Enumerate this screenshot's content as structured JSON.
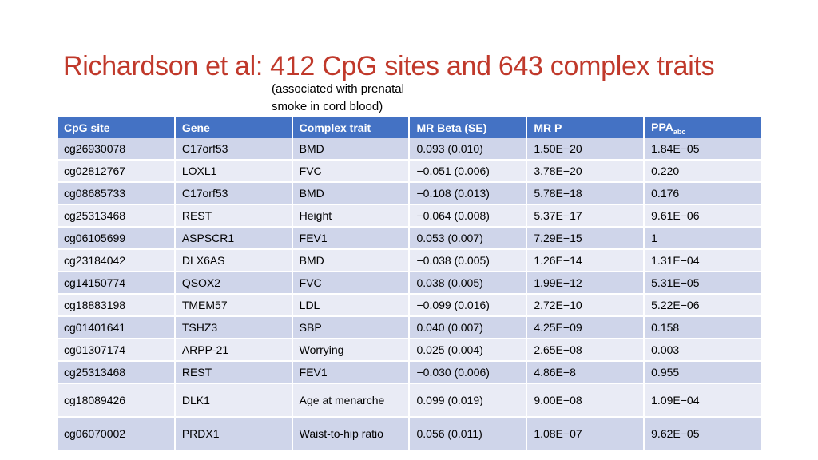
{
  "title": "Richardson et al: 412 CpG sites and 643 complex traits",
  "subtitle_line1": "(associated with prenatal",
  "subtitle_line2": "smoke in cord blood)",
  "colors": {
    "title": "#c0392b",
    "header_bg": "#4472c4",
    "row_odd": "#cfd5ea",
    "row_even": "#e9ebf5"
  },
  "table": {
    "headers": [
      "CpG site",
      "Gene",
      "Complex trait",
      "MR Beta (SE)",
      "MR P",
      "PPA"
    ],
    "ppa_subscript": "abc",
    "rows": [
      [
        "cg26930078",
        "C17orf53",
        "BMD",
        "0.093 (0.010)",
        "1.50E−20",
        "1.84E−05"
      ],
      [
        "cg02812767",
        "LOXL1",
        "FVC",
        "−0.051 (0.006)",
        "3.78E−20",
        "0.220"
      ],
      [
        "cg08685733",
        "C17orf53",
        "BMD",
        "−0.108 (0.013)",
        "5.78E−18",
        "0.176"
      ],
      [
        "cg25313468",
        "REST",
        "Height",
        "−0.064 (0.008)",
        "5.37E−17",
        "9.61E−06"
      ],
      [
        "cg06105699",
        "ASPSCR1",
        "FEV1",
        "0.053 (0.007)",
        "7.29E−15",
        "1"
      ],
      [
        "cg23184042",
        "DLX6AS",
        "BMD",
        "−0.038 (0.005)",
        "1.26E−14",
        "1.31E−04"
      ],
      [
        "cg14150774",
        "QSOX2",
        "FVC",
        "0.038 (0.005)",
        "1.99E−12",
        "5.31E−05"
      ],
      [
        "cg18883198",
        "TMEM57",
        "LDL",
        "−0.099 (0.016)",
        "2.72E−10",
        "5.22E−06"
      ],
      [
        "cg01401641",
        "TSHZ3",
        "SBP",
        "0.040 (0.007)",
        "4.25E−09",
        "0.158"
      ],
      [
        "cg01307174",
        "ARPP-21",
        "Worrying",
        "0.025 (0.004)",
        "2.65E−08",
        "0.003"
      ],
      [
        "cg25313468",
        "REST",
        "FEV1",
        "−0.030 (0.006)",
        "4.86E−8",
        "0.955"
      ],
      [
        "cg18089426",
        "DLK1",
        "Age at menarche",
        "0.099 (0.019)",
        "9.00E−08",
        "1.09E−04"
      ],
      [
        "cg06070002",
        "PRDX1",
        "Waist-to-hip ratio",
        "0.056 (0.011)",
        "1.08E−07",
        "9.62E−05"
      ]
    ]
  }
}
